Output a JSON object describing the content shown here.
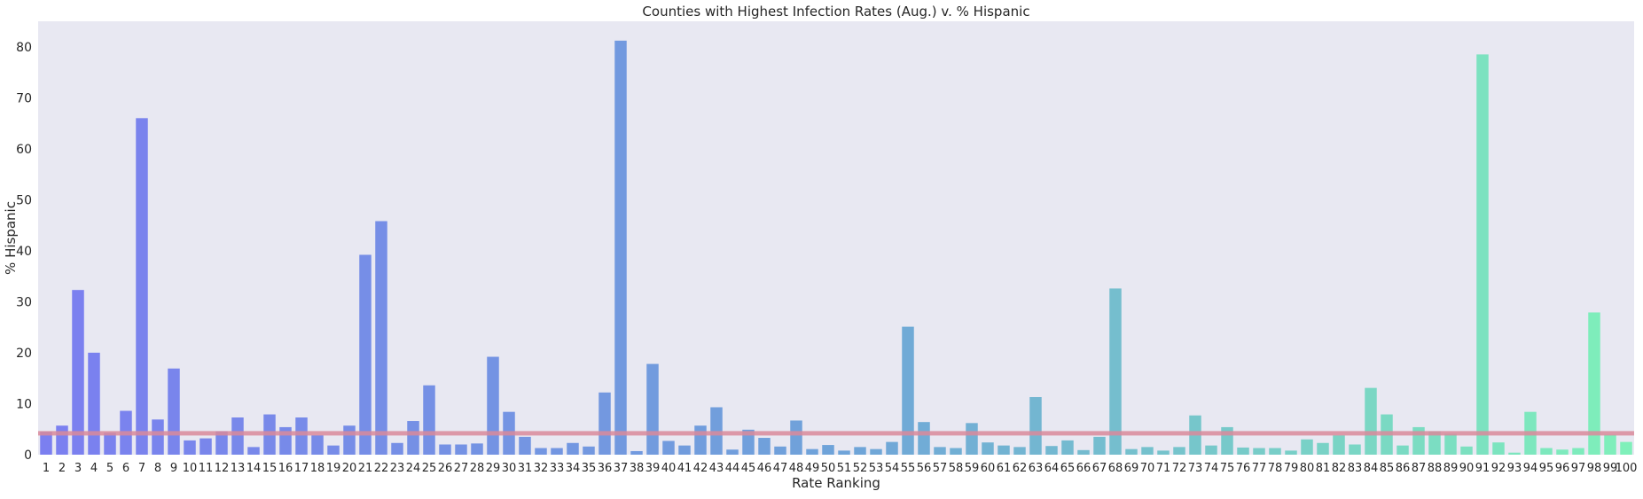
{
  "chart_data": {
    "type": "bar",
    "title": "Counties with Highest Infection Rates (Aug.) v. % Hispanic",
    "xlabel": "Rate Ranking",
    "ylabel": "% Hispanic",
    "ylim": [
      0,
      85
    ],
    "yticks": [
      0,
      10,
      20,
      30,
      40,
      50,
      60,
      70,
      80
    ],
    "grid": false,
    "categories": [
      "1",
      "2",
      "3",
      "4",
      "5",
      "6",
      "7",
      "8",
      "9",
      "10",
      "11",
      "12",
      "13",
      "14",
      "15",
      "16",
      "17",
      "18",
      "19",
      "20",
      "21",
      "22",
      "23",
      "24",
      "25",
      "26",
      "27",
      "28",
      "29",
      "30",
      "31",
      "32",
      "33",
      "34",
      "35",
      "36",
      "37",
      "38",
      "39",
      "40",
      "41",
      "42",
      "43",
      "44",
      "45",
      "46",
      "47",
      "48",
      "49",
      "50",
      "51",
      "52",
      "53",
      "54",
      "55",
      "56",
      "57",
      "58",
      "59",
      "60",
      "61",
      "62",
      "63",
      "64",
      "65",
      "66",
      "67",
      "68",
      "69",
      "70",
      "71",
      "72",
      "73",
      "74",
      "75",
      "76",
      "77",
      "78",
      "79",
      "80",
      "81",
      "82",
      "83",
      "84",
      "85",
      "86",
      "87",
      "88",
      "89",
      "90",
      "91",
      "92",
      "93",
      "94",
      "95",
      "96",
      "97",
      "98",
      "99",
      "100"
    ],
    "values": [
      4.5,
      5.7,
      32.3,
      20.0,
      4.3,
      8.6,
      66.0,
      6.9,
      16.9,
      2.8,
      3.2,
      4.6,
      7.3,
      1.5,
      7.9,
      5.4,
      7.3,
      3.8,
      1.8,
      5.7,
      39.2,
      45.8,
      2.3,
      6.6,
      13.6,
      2.0,
      2.0,
      2.2,
      19.2,
      8.4,
      3.5,
      1.3,
      1.3,
      2.3,
      1.6,
      12.2,
      81.2,
      0.7,
      17.8,
      2.7,
      1.8,
      5.7,
      9.3,
      1.0,
      4.9,
      3.3,
      1.6,
      6.7,
      1.1,
      1.9,
      0.8,
      1.5,
      1.1,
      2.5,
      25.1,
      6.4,
      1.5,
      1.3,
      6.2,
      2.4,
      1.8,
      1.5,
      11.3,
      1.7,
      2.8,
      0.9,
      3.5,
      32.6,
      1.1,
      1.5,
      0.8,
      1.5,
      7.7,
      1.8,
      5.4,
      1.4,
      1.3,
      1.3,
      0.8,
      3.0,
      2.3,
      3.8,
      2.0,
      13.1,
      7.9,
      1.8,
      5.4,
      4.6,
      4.1,
      1.6,
      78.5,
      2.4,
      0.4,
      8.4,
      1.3,
      1.0,
      1.3,
      27.9,
      3.9,
      2.5
    ],
    "reference_line": {
      "y": 4.2,
      "color": "#d98a9b"
    },
    "colors": {
      "start": "#7b7ff0",
      "mid": "#6fa3d9",
      "end": "#7ff0ba",
      "background": "#e8e8f2"
    }
  }
}
